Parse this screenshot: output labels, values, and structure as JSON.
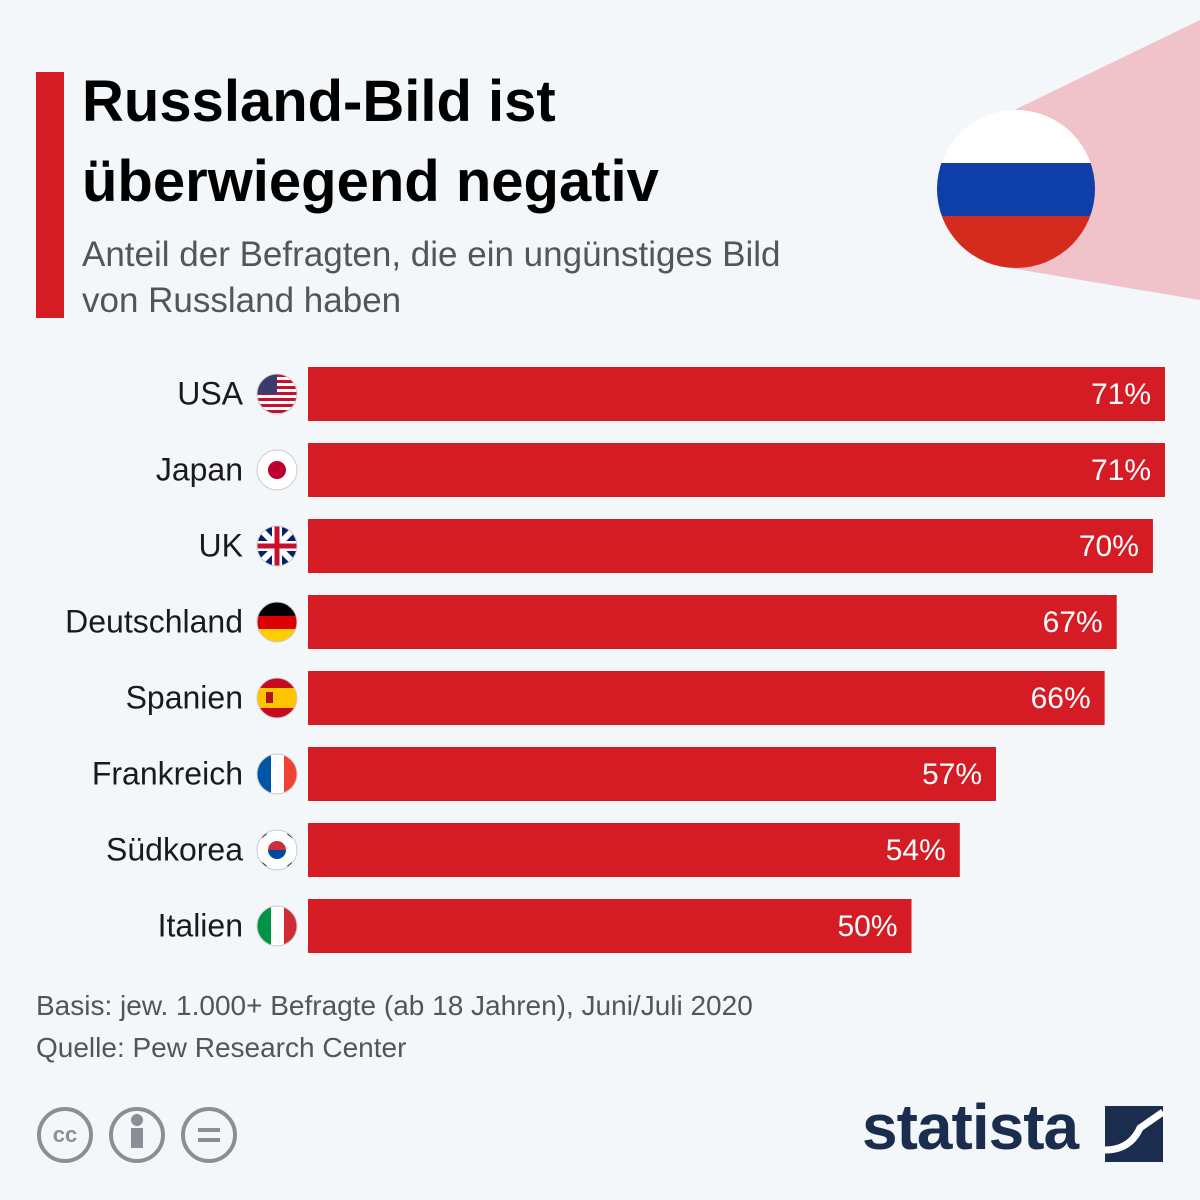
{
  "chart_data": {
    "type": "bar",
    "orientation": "horizontal",
    "title": "Russland-Bild ist überwiegend negativ",
    "subtitle": "Anteil der Befragten, die ein ungünstiges Bild von Russland haben",
    "categories": [
      "USA",
      "Japan",
      "UK",
      "Deutschland",
      "Spanien",
      "Frankreich",
      "Südkorea",
      "Italien"
    ],
    "values": [
      71,
      71,
      70,
      67,
      66,
      57,
      54,
      50
    ],
    "value_labels": [
      "71%",
      "71%",
      "70%",
      "67%",
      "66%",
      "57%",
      "54%",
      "50%"
    ],
    "color": "#d51b24",
    "notes": [
      "Basis: jew. 1.000+ Befragte (ab 18 Jahren), Juni/Juli 2020",
      "Quelle: Pew Research Center"
    ],
    "brand": "statista"
  }
}
